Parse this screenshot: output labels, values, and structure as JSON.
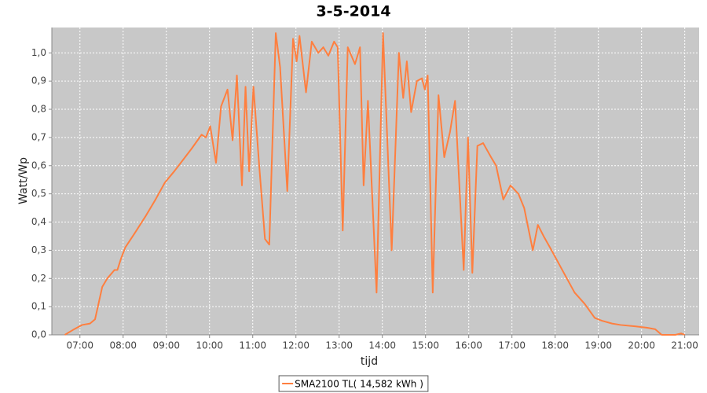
{
  "chart_data": {
    "type": "line",
    "title": "3-5-2014",
    "x_label": "tijd",
    "y_label": "Watt/Wp",
    "x": [
      "06:39",
      "06:52",
      "07:03",
      "07:14",
      "07:21",
      "07:31",
      "07:38",
      "07:48",
      "07:52",
      "07:57",
      "08:03",
      "08:16",
      "08:31",
      "08:45",
      "08:58",
      "09:11",
      "09:23",
      "09:35",
      "09:49",
      "09:55",
      "10:01",
      "10:09",
      "10:16",
      "10:25",
      "10:32",
      "10:38",
      "10:45",
      "10:50",
      "10:55",
      "11:01",
      "11:09",
      "11:17",
      "11:23",
      "11:32",
      "11:38",
      "11:48",
      "11:56",
      "12:01",
      "12:05",
      "12:14",
      "12:22",
      "12:31",
      "12:38",
      "12:45",
      "12:53",
      "12:58",
      "13:05",
      "13:12",
      "13:22",
      "13:29",
      "13:34",
      "13:40",
      "13:52",
      "14:01",
      "14:13",
      "14:23",
      "14:29",
      "14:34",
      "14:40",
      "14:48",
      "14:55",
      "14:59",
      "15:03",
      "15:10",
      "15:18",
      "15:26",
      "15:34",
      "15:41",
      "15:53",
      "15:59",
      "16:05",
      "16:12",
      "16:20",
      "16:31",
      "16:38",
      "16:48",
      "16:58",
      "17:09",
      "17:17",
      "17:29",
      "17:36",
      "17:44",
      "17:55",
      "18:12",
      "18:27",
      "18:41",
      "18:55",
      "19:05",
      "19:19",
      "19:31",
      "19:52",
      "20:08",
      "20:19",
      "20:28",
      "20:47",
      "20:55",
      "21:00"
    ],
    "series": [
      {
        "name": "SMA2100 TL( 14,582 kWh )",
        "color": "#ff7f3f",
        "values": [
          0.0,
          0.02,
          0.035,
          0.04,
          0.055,
          0.17,
          0.2,
          0.23,
          0.23,
          0.27,
          0.31,
          0.36,
          0.42,
          0.48,
          0.54,
          0.58,
          0.62,
          0.66,
          0.71,
          0.7,
          0.74,
          0.61,
          0.81,
          0.87,
          0.69,
          0.92,
          0.53,
          0.88,
          0.58,
          0.88,
          0.6,
          0.34,
          0.32,
          1.07,
          0.95,
          0.51,
          1.05,
          0.97,
          1.06,
          0.86,
          1.04,
          1.0,
          1.02,
          0.99,
          1.04,
          1.02,
          0.37,
          1.02,
          0.96,
          1.02,
          0.53,
          0.83,
          0.15,
          1.07,
          0.3,
          1.0,
          0.84,
          0.97,
          0.79,
          0.9,
          0.91,
          0.87,
          0.92,
          0.15,
          0.85,
          0.63,
          0.72,
          0.83,
          0.23,
          0.7,
          0.22,
          0.67,
          0.68,
          0.63,
          0.6,
          0.48,
          0.53,
          0.5,
          0.45,
          0.3,
          0.39,
          0.35,
          0.3,
          0.22,
          0.15,
          0.11,
          0.06,
          0.05,
          0.04,
          0.035,
          0.03,
          0.025,
          0.02,
          0.0,
          0.0,
          0.005,
          0.0
        ]
      }
    ],
    "xlim": [
      "06:21",
      "21:20"
    ],
    "xticks": [
      "07:00",
      "08:00",
      "09:00",
      "10:00",
      "11:00",
      "12:00",
      "13:00",
      "14:00",
      "15:00",
      "16:00",
      "17:00",
      "18:00",
      "19:00",
      "20:00",
      "21:00"
    ],
    "ylim": [
      0,
      1.09
    ],
    "yticks": [
      {
        "value": 0,
        "label": "0,0"
      },
      {
        "value": 0.1,
        "label": "0,1"
      },
      {
        "value": 0.2,
        "label": "0,2"
      },
      {
        "value": 0.3,
        "label": "0,3"
      },
      {
        "value": 0.4,
        "label": "0,4"
      },
      {
        "value": 0.5,
        "label": "0,5"
      },
      {
        "value": 0.6,
        "label": "0,6"
      },
      {
        "value": 0.7,
        "label": "0,7"
      },
      {
        "value": 0.8,
        "label": "0,8"
      },
      {
        "value": 0.9,
        "label": "0,9"
      },
      {
        "value": 1.0,
        "label": "1,0"
      }
    ],
    "grid": true,
    "background": "#c8c8c8",
    "legend": "bottom"
  }
}
